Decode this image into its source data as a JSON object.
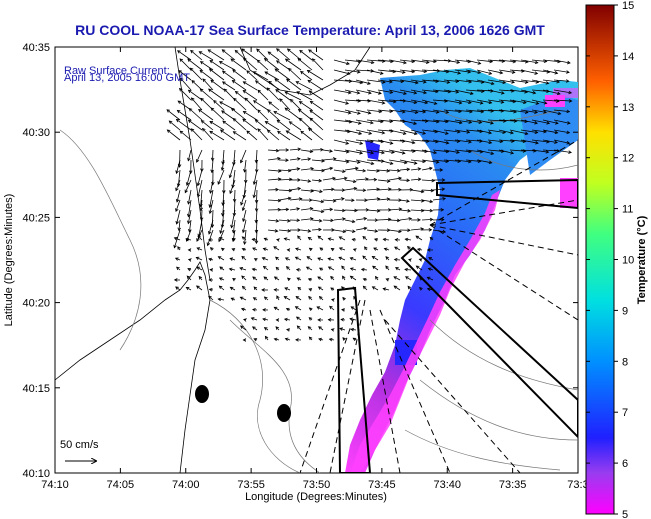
{
  "title": "RU COOL  NOAA-17  Sea Surface Temperature:  April 13, 2006 1626 GMT",
  "current_note": {
    "line1": "Raw Surface Current:",
    "line2": "April 13, 2005 16:00 GMT"
  },
  "axes": {
    "x_label": "Longitude (Degrees:Minutes)",
    "y_label": "Latitude (Degrees:Minutes)",
    "x_ticks": [
      "74:10",
      "74:05",
      "74:00",
      "73:55",
      "73:50",
      "73:45",
      "73:40",
      "73:35",
      "73:3"
    ],
    "y_ticks": [
      "40:35",
      "40:30",
      "40:25",
      "40:20",
      "40:15",
      "40:10"
    ]
  },
  "scale_label": "50 cm/s",
  "colorbar": {
    "label": "Temperature (°C)",
    "ticks": [
      "15",
      "14",
      "13",
      "12",
      "11",
      "10",
      "9",
      "8",
      "7",
      "6",
      "5"
    ],
    "min": 5,
    "max": 15
  },
  "colors": {
    "title": "#1a1ab0",
    "annotation": "#1a1ab0"
  }
}
